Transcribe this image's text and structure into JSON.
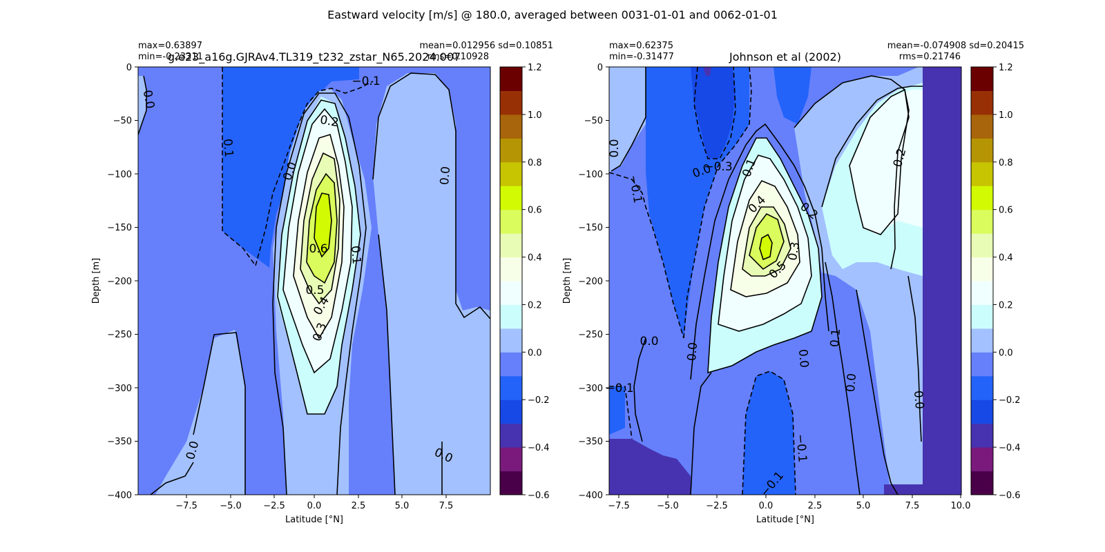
{
  "figure": {
    "title": "Eastward velocity [m/s] @ 180.0, averaged between 0031-01-01 and 0062-01-01"
  },
  "colorbar": {
    "levels": [
      -0.6,
      -0.5,
      -0.4,
      -0.3,
      -0.2,
      -0.1,
      0.0,
      0.1,
      0.2,
      0.3,
      0.4,
      0.5,
      0.6,
      0.7,
      0.8,
      0.9,
      1.0,
      1.1,
      1.2
    ],
    "colors": [
      "#4a0049",
      "#7a1a7c",
      "#4733b0",
      "#1749e6",
      "#2463fa",
      "#6680fb",
      "#a3c1fe",
      "#ccfdfd",
      "#f0ffff",
      "#f8ffe8",
      "#e9fcb6",
      "#dafc5c",
      "#d2fa03",
      "#c7c401",
      "#b59504",
      "#a8650b",
      "#983006",
      "#6b0000"
    ],
    "ticks": [
      "1.2",
      "1.0",
      "0.8",
      "0.6",
      "0.4",
      "0.2",
      "0.0",
      "−0.2",
      "−0.4",
      "−0.6"
    ]
  },
  "chart_data": [
    {
      "type": "heatmap",
      "title": "g.e23_a16g.GJRAv4.TL319_t232_zstar_N65.2024.007",
      "stats": {
        "max": "max=0.63897",
        "min": "min=-0.23311",
        "mean_sd": "mean=0.012956 sd=0.10851",
        "rms": "rms=0.10928"
      },
      "xlabel": "Latitude [°N]",
      "ylabel": "Depth [m]",
      "xlim": [
        -10,
        10
      ],
      "ylim": [
        -400,
        0
      ],
      "xticks": [
        "−7.5",
        "−5.0",
        "−2.5",
        "0.0",
        "2.5",
        "5.0",
        "7.5"
      ],
      "yticks": [
        "0",
        "−50",
        "−100",
        "−150",
        "−200",
        "−250",
        "−300",
        "−350",
        "−400"
      ],
      "core": {
        "lat": 0.4,
        "depth": -150,
        "max": 0.64
      },
      "contour_labels": [
        "0.0",
        "0.1",
        "0.0",
        "0.2",
        "0.6",
        "0.5",
        "0.4",
        "0.3",
        "0.1",
        "0.0",
        "−0.1",
        "−0.1",
        "0.0",
        "0.0"
      ]
    },
    {
      "type": "heatmap",
      "title": "Johnson et al (2002)",
      "stats": {
        "max": "max=0.62375",
        "min": "min=-0.31477",
        "mean_sd": "mean=-0.074908 sd=0.20415",
        "rms": "rms=0.21746"
      },
      "xlabel": "Latitude [°N]",
      "ylabel": "Depth [m]",
      "xlim": [
        -8,
        10
      ],
      "ylim": [
        -400,
        0
      ],
      "xticks": [
        "−7.5",
        "−5.0",
        "−2.5",
        "0.0",
        "2.5",
        "5.0",
        "7.5",
        "10.0"
      ],
      "yticks": [
        "0",
        "−50",
        "−100",
        "−150",
        "−200",
        "−250",
        "−300",
        "−350",
        "−400"
      ],
      "core": {
        "lat": 0.5,
        "depth": -170,
        "max": 0.62
      },
      "contour_labels": [
        "0.0",
        "−0.1",
        "−0.3",
        "0.0",
        "0.1",
        "0.4",
        "0.2",
        "0.3",
        "0.5",
        "0.2",
        "0.0",
        "0.0",
        "0.0",
        "0.1",
        "0.0",
        "0.0",
        "−0.1",
        "−0.1",
        "−0.1"
      ]
    }
  ]
}
